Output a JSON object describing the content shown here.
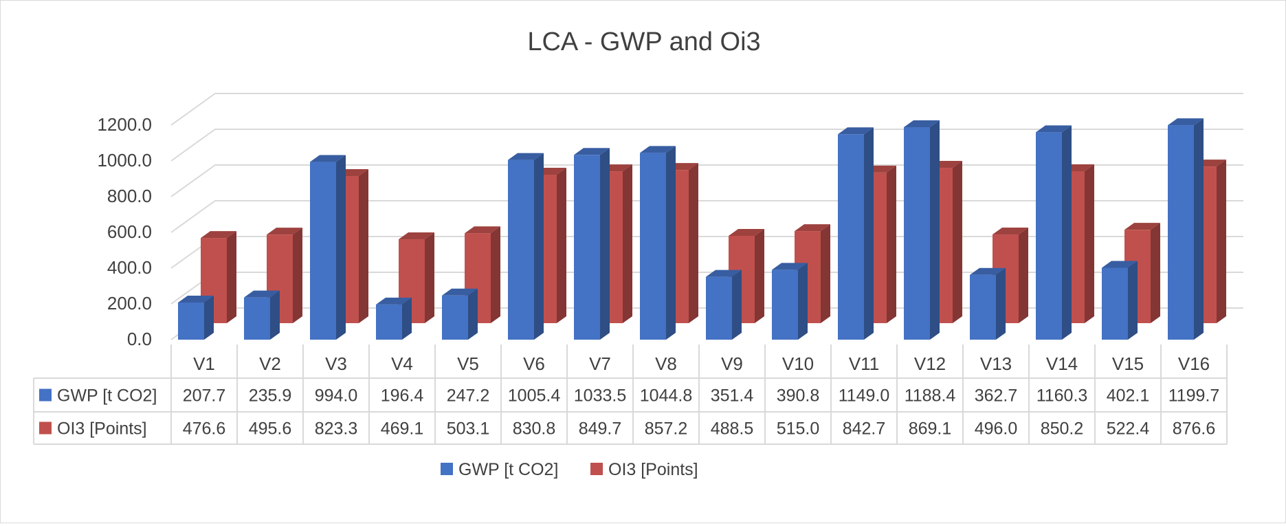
{
  "chart_data": {
    "type": "bar",
    "title": "LCA - GWP and Oi3",
    "categories": [
      "V1",
      "V2",
      "V3",
      "V4",
      "V5",
      "V6",
      "V7",
      "V8",
      "V9",
      "V10",
      "V11",
      "V12",
      "V13",
      "V14",
      "V15",
      "V16"
    ],
    "series": [
      {
        "name": "GWP [t CO2]",
        "color": "#4472c4",
        "values": [
          207.7,
          235.9,
          994.0,
          196.4,
          247.2,
          1005.4,
          1033.5,
          1044.8,
          351.4,
          390.8,
          1149.0,
          1188.4,
          362.7,
          1160.3,
          402.1,
          1199.7
        ]
      },
      {
        "name": "OI3 [Points]",
        "color": "#c0504d",
        "values": [
          476.6,
          495.6,
          823.3,
          469.1,
          503.1,
          830.8,
          849.7,
          857.2,
          488.5,
          515.0,
          842.7,
          869.1,
          496.0,
          850.2,
          522.4,
          876.6
        ]
      }
    ],
    "y_ticks": [
      "0.0",
      "200.0",
      "400.0",
      "600.0",
      "800.0",
      "1000.0",
      "1200.0"
    ],
    "ylim": [
      0,
      1200
    ],
    "grid": true,
    "data_table": true,
    "legend_position": "bottom"
  }
}
